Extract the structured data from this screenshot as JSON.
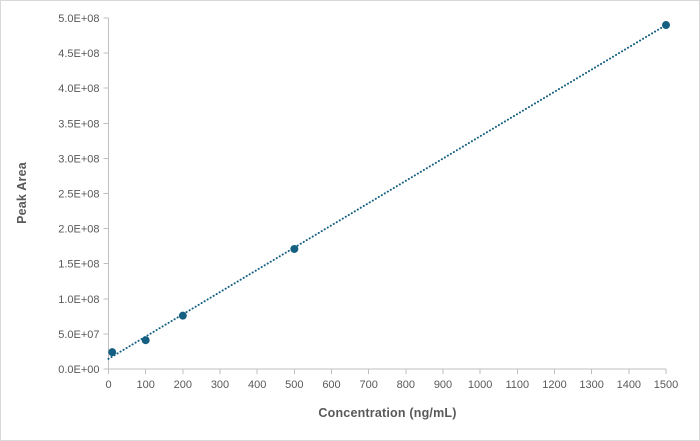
{
  "chart": {
    "title": "",
    "x_axis_title": "Concentration (ng/mL)",
    "y_axis_title": "Peak Area"
  },
  "chart_data": {
    "type": "scatter",
    "title": "",
    "xlabel": "Concentration (ng/mL)",
    "ylabel": "Peak Area",
    "points": [
      {
        "x": 10,
        "y": 24000000.0
      },
      {
        "x": 100,
        "y": 41000000.0
      },
      {
        "x": 200,
        "y": 76000000.0
      },
      {
        "x": 500,
        "y": 171000000.0
      },
      {
        "x": 1500,
        "y": 490000000.0
      }
    ],
    "trendline": {
      "style": "dotted",
      "slope": 317000.0,
      "intercept": 14500000.0,
      "x_start": 0,
      "x_end": 1500
    },
    "xlim": [
      0,
      1500
    ],
    "ylim": [
      0,
      500000000.0
    ],
    "x_ticks": [
      {
        "value": 0,
        "label": "0"
      },
      {
        "value": 100,
        "label": "100"
      },
      {
        "value": 200,
        "label": "200"
      },
      {
        "value": 300,
        "label": "300"
      },
      {
        "value": 400,
        "label": "400"
      },
      {
        "value": 500,
        "label": "500"
      },
      {
        "value": 600,
        "label": "600"
      },
      {
        "value": 700,
        "label": "700"
      },
      {
        "value": 800,
        "label": "800"
      },
      {
        "value": 900,
        "label": "900"
      },
      {
        "value": 1000,
        "label": "1000"
      },
      {
        "value": 1100,
        "label": "1100"
      },
      {
        "value": 1200,
        "label": "1200"
      },
      {
        "value": 1300,
        "label": "1300"
      },
      {
        "value": 1400,
        "label": "1400"
      },
      {
        "value": 1500,
        "label": "1500"
      }
    ],
    "y_ticks": [
      {
        "value": 0,
        "label": "0.0E+00"
      },
      {
        "value": 50000000.0,
        "label": "5.0E+07"
      },
      {
        "value": 100000000.0,
        "label": "1.0E+08"
      },
      {
        "value": 150000000.0,
        "label": "1.5E+08"
      },
      {
        "value": 200000000.0,
        "label": "2.0E+08"
      },
      {
        "value": 250000000.0,
        "label": "2.5E+08"
      },
      {
        "value": 300000000.0,
        "label": "3.0E+08"
      },
      {
        "value": 350000000.0,
        "label": "3.5E+08"
      },
      {
        "value": 400000000.0,
        "label": "4.0E+08"
      },
      {
        "value": 450000000.0,
        "label": "4.5E+08"
      },
      {
        "value": 500000000.0,
        "label": "5.0E+08"
      }
    ],
    "grid": false,
    "legend": false,
    "colors": {
      "marker": "#156082",
      "trendline": "#156082",
      "axis_line": "#bfbfbf",
      "tick_text": "#595959",
      "axis_title_text": "#595959",
      "background": "#ffffff",
      "frame_border": "#d8d8d8"
    }
  }
}
